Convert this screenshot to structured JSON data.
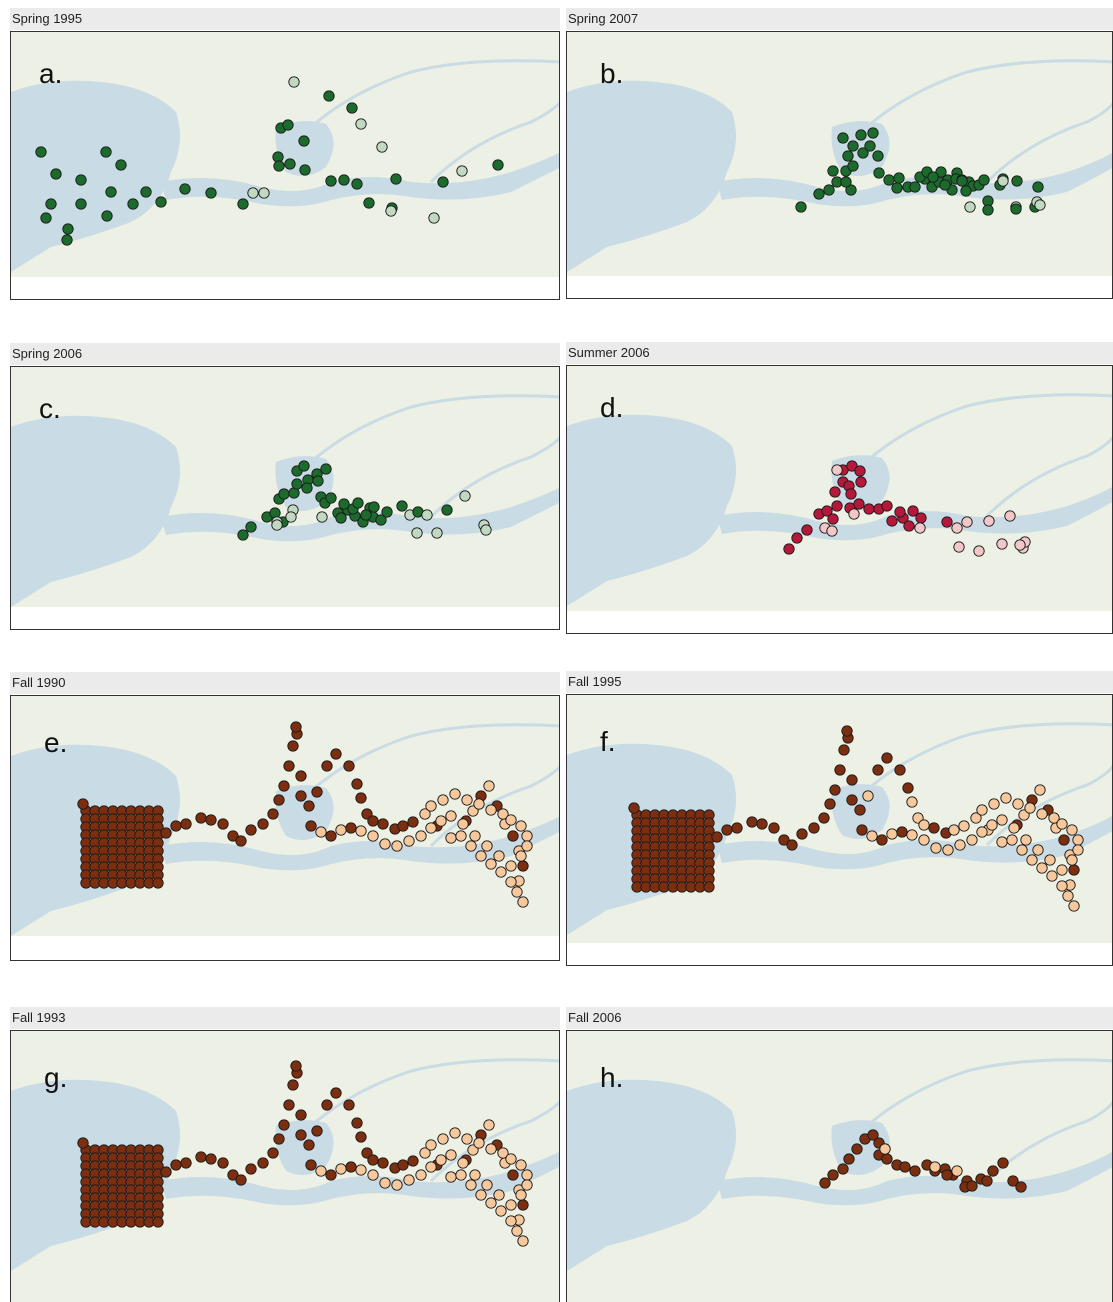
{
  "colors": {
    "land": "#edf0e4",
    "water": "#c9dbe4",
    "green_dark": "#1c6b2d",
    "green_light": "#c2d9c1",
    "red_dark": "#b4183a",
    "red_light": "#f2c7c7",
    "brown_dark": "#7b2e10",
    "brown_light": "#f6c89c"
  },
  "panels": [
    {
      "title": "Spring 1995",
      "letter": "a."
    },
    {
      "title": "Spring 2007",
      "letter": "b."
    },
    {
      "title": "Spring 2006",
      "letter": "c."
    },
    {
      "title": "Summer 2006",
      "letter": "d."
    },
    {
      "title": "Fall 1990",
      "letter": "e."
    },
    {
      "title": "Fall 1995",
      "letter": "f."
    },
    {
      "title": "Fall 1993",
      "letter": "g."
    },
    {
      "title": "Fall 2006",
      "letter": "h."
    }
  ]
}
